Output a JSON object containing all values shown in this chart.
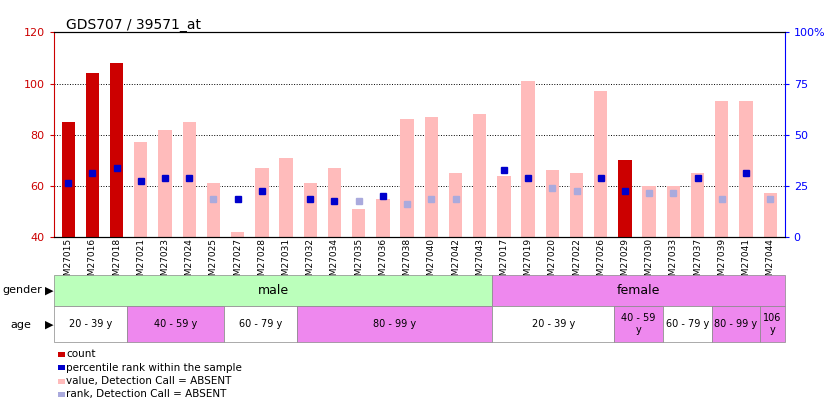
{
  "title": "GDS707 / 39571_at",
  "samples": [
    "GSM27015",
    "GSM27016",
    "GSM27018",
    "GSM27021",
    "GSM27023",
    "GSM27024",
    "GSM27025",
    "GSM27027",
    "GSM27028",
    "GSM27031",
    "GSM27032",
    "GSM27034",
    "GSM27035",
    "GSM27036",
    "GSM27038",
    "GSM27040",
    "GSM27042",
    "GSM27043",
    "GSM27017",
    "GSM27019",
    "GSM27020",
    "GSM27022",
    "GSM27026",
    "GSM27029",
    "GSM27030",
    "GSM27033",
    "GSM27037",
    "GSM27039",
    "GSM27041",
    "GSM27044"
  ],
  "count_values": [
    85,
    104,
    108,
    null,
    null,
    null,
    null,
    null,
    null,
    null,
    null,
    null,
    null,
    null,
    null,
    null,
    null,
    null,
    null,
    null,
    null,
    null,
    null,
    70,
    null,
    null,
    null,
    null,
    null,
    null
  ],
  "pink_values": [
    null,
    null,
    null,
    77,
    82,
    85,
    61,
    42,
    67,
    71,
    61,
    67,
    51,
    55,
    86,
    87,
    65,
    88,
    64,
    101,
    66,
    65,
    97,
    null,
    60,
    60,
    65,
    93,
    93,
    57
  ],
  "blue_square_y": [
    61,
    65,
    67,
    62,
    63,
    63,
    null,
    55,
    58,
    null,
    55,
    54,
    null,
    56,
    null,
    null,
    null,
    null,
    66,
    63,
    null,
    null,
    63,
    58,
    null,
    null,
    63,
    null,
    65,
    null
  ],
  "light_blue_y": [
    null,
    null,
    null,
    null,
    null,
    null,
    55,
    null,
    null,
    null,
    null,
    null,
    54,
    null,
    53,
    55,
    55,
    null,
    null,
    null,
    59,
    58,
    null,
    null,
    57,
    57,
    null,
    55,
    null,
    55
  ],
  "ylim_left": [
    40,
    120
  ],
  "ylim_right": [
    0,
    100
  ],
  "yticks_left": [
    40,
    60,
    80,
    100,
    120
  ],
  "yticks_right": [
    0,
    25,
    50,
    75,
    100
  ],
  "ytick_labels_right": [
    "0",
    "25",
    "50",
    "75",
    "100%"
  ],
  "baseline": 40,
  "gender_groups": [
    {
      "label": "male",
      "start": 0,
      "end": 18,
      "color": "#bbffbb"
    },
    {
      "label": "female",
      "start": 18,
      "end": 30,
      "color": "#ee88ee"
    }
  ],
  "age_groups": [
    {
      "label": "20 - 39 y",
      "start": 0,
      "end": 3,
      "color": "#ffffff"
    },
    {
      "label": "40 - 59 y",
      "start": 3,
      "end": 7,
      "color": "#ee88ee"
    },
    {
      "label": "60 - 79 y",
      "start": 7,
      "end": 10,
      "color": "#ffffff"
    },
    {
      "label": "80 - 99 y",
      "start": 10,
      "end": 18,
      "color": "#ee88ee"
    },
    {
      "label": "20 - 39 y",
      "start": 18,
      "end": 23,
      "color": "#ffffff"
    },
    {
      "label": "40 - 59\ny",
      "start": 23,
      "end": 25,
      "color": "#ee88ee"
    },
    {
      "label": "60 - 79 y",
      "start": 25,
      "end": 27,
      "color": "#ffffff"
    },
    {
      "label": "80 - 99 y",
      "start": 27,
      "end": 29,
      "color": "#ee88ee"
    },
    {
      "label": "106\ny",
      "start": 29,
      "end": 30,
      "color": "#ee88ee"
    }
  ],
  "bar_width": 0.55,
  "red_color": "#cc0000",
  "pink_color": "#ffbbbb",
  "blue_color": "#0000cc",
  "light_blue_color": "#aaaadd",
  "legend_items": [
    {
      "color": "#cc0000",
      "label": "count"
    },
    {
      "color": "#0000cc",
      "label": "percentile rank within the sample"
    },
    {
      "color": "#ffbbbb",
      "label": "value, Detection Call = ABSENT"
    },
    {
      "color": "#aaaadd",
      "label": "rank, Detection Call = ABSENT"
    }
  ]
}
